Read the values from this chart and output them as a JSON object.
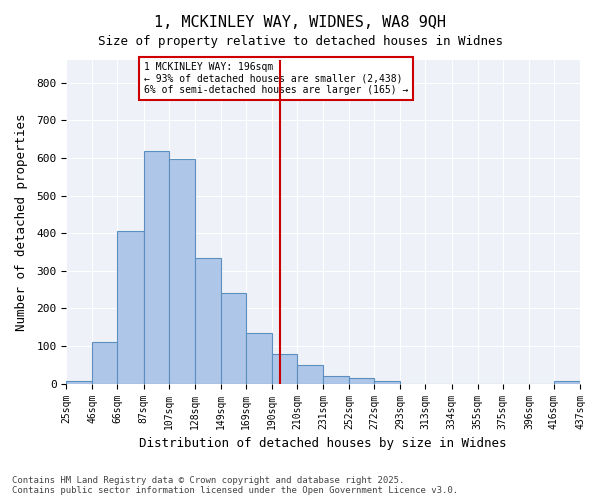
{
  "title_line1": "1, MCKINLEY WAY, WIDNES, WA8 9QH",
  "title_line2": "Size of property relative to detached houses in Widnes",
  "xlabel": "Distribution of detached houses by size in Widnes",
  "ylabel": "Number of detached properties",
  "bin_labels": [
    "25sqm",
    "46sqm",
    "66sqm",
    "87sqm",
    "107sqm",
    "128sqm",
    "149sqm",
    "169sqm",
    "190sqm",
    "210sqm",
    "231sqm",
    "252sqm",
    "272sqm",
    "293sqm",
    "313sqm",
    "334sqm",
    "355sqm",
    "375sqm",
    "396sqm",
    "416sqm",
    "437sqm"
  ],
  "bar_counts": [
    7,
    110,
    405,
    619,
    597,
    334,
    240,
    136,
    80,
    50,
    20,
    15,
    7,
    0,
    0,
    0,
    0,
    0,
    0,
    7
  ],
  "bin_edges": [
    25,
    46,
    66,
    87,
    107,
    128,
    149,
    169,
    190,
    210,
    231,
    252,
    272,
    293,
    313,
    334,
    355,
    375,
    396,
    416,
    437
  ],
  "bar_color": "#aec6e8",
  "bar_edge_color": "#5a8fc0",
  "vline_x": 196,
  "vline_color": "#cc0000",
  "annotation_text": "1 MCKINLEY WAY: 196sqm\n← 93% of detached houses are smaller (2,438)\n6% of semi-detached houses are larger (165) →",
  "annotation_box_color": "#cc0000",
  "footer_line1": "Contains HM Land Registry data © Crown copyright and database right 2025.",
  "footer_line2": "Contains public sector information licensed under the Open Government Licence v3.0.",
  "ylim": [
    0,
    860
  ],
  "yticks": [
    0,
    100,
    200,
    300,
    400,
    500,
    600,
    700,
    800
  ],
  "background_color": "#eef2f8",
  "grid_color": "white"
}
